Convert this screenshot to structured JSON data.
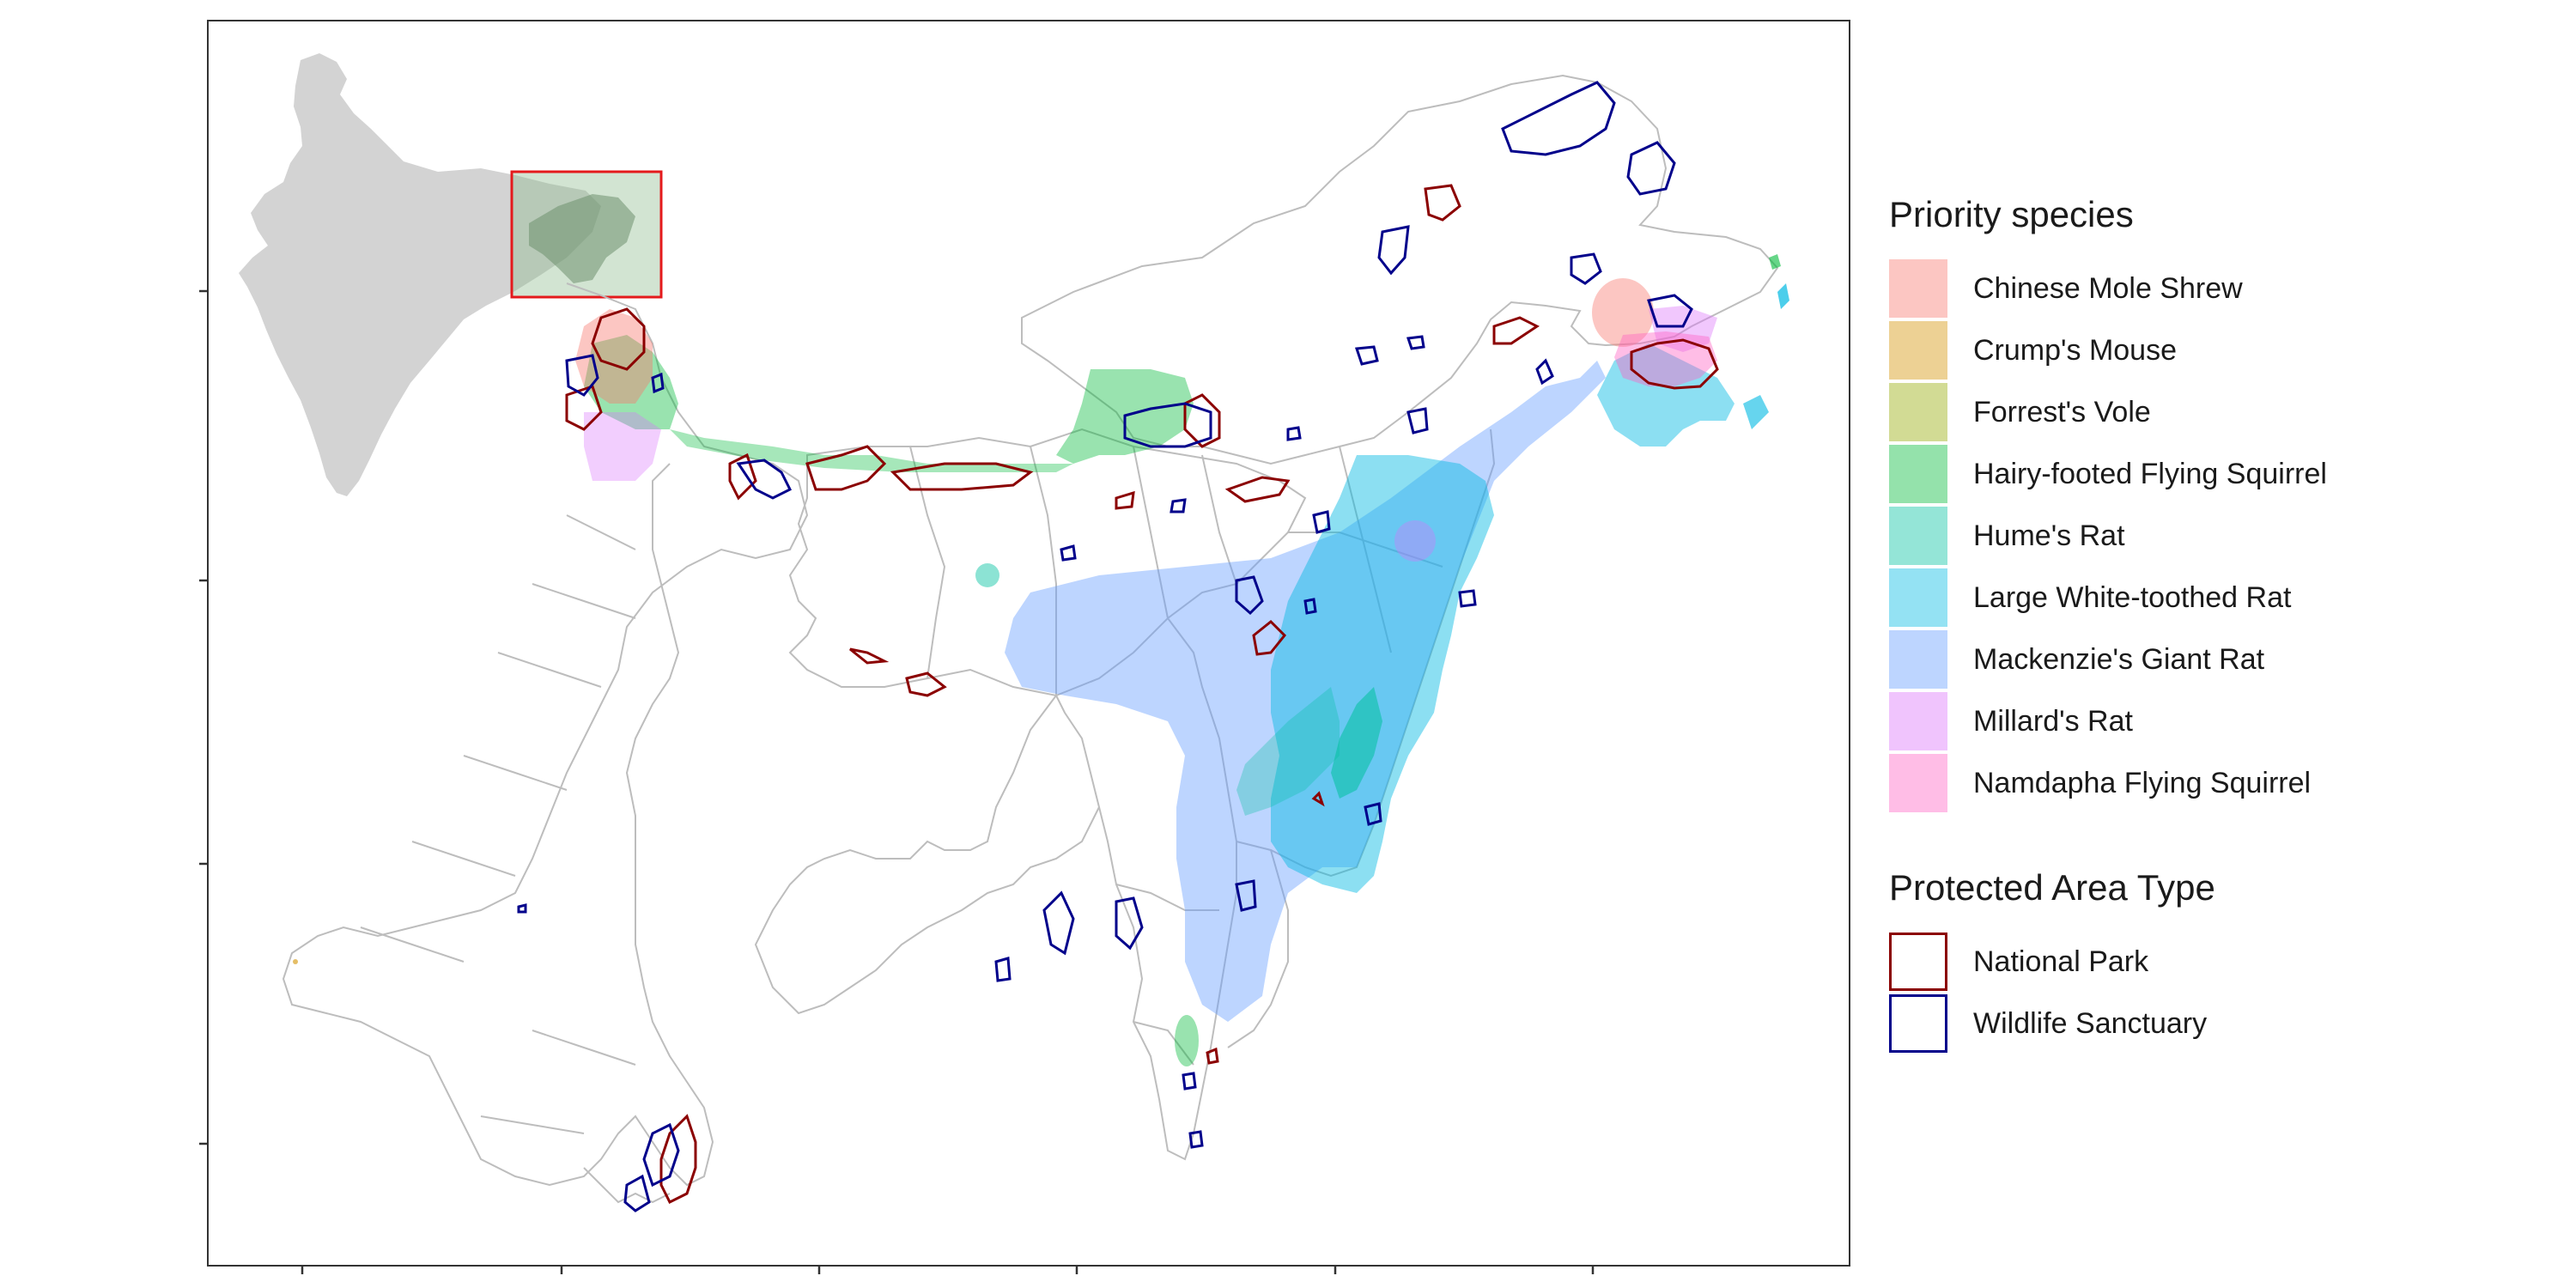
{
  "legend_species": {
    "title": "Priority species",
    "items": [
      {
        "label": "Chinese Mole Shrew",
        "color": "#F8766D"
      },
      {
        "label": "Crump's Mouse",
        "color": "#D39200"
      },
      {
        "label": "Forrest's Vole",
        "color": "#93AA00"
      },
      {
        "label": "Hairy-footed Flying Squirrel",
        "color": "#00BA38"
      },
      {
        "label": "Hume's Rat",
        "color": "#00C19F"
      },
      {
        "label": "Large White-toothed Rat",
        "color": "#00B9E3"
      },
      {
        "label": "Mackenzie's Giant Rat",
        "color": "#619CFF"
      },
      {
        "label": "Millard's Rat",
        "color": "#DB72FB"
      },
      {
        "label": "Namdapha Flying Squirrel",
        "color": "#FF61C3"
      }
    ]
  },
  "legend_protected": {
    "title": "Protected Area Type",
    "items": [
      {
        "label": "National Park",
        "color": "#8B0000"
      },
      {
        "label": "Wildlife Sanctuary",
        "color": "#00008B"
      }
    ]
  },
  "colors": {
    "boundary": "#BDBDBD",
    "inset_land": "#D3D3D3",
    "inset_box_fill": "#8FBC8F",
    "inset_box_border": "#E41A1C",
    "panel_border": "#333333"
  }
}
